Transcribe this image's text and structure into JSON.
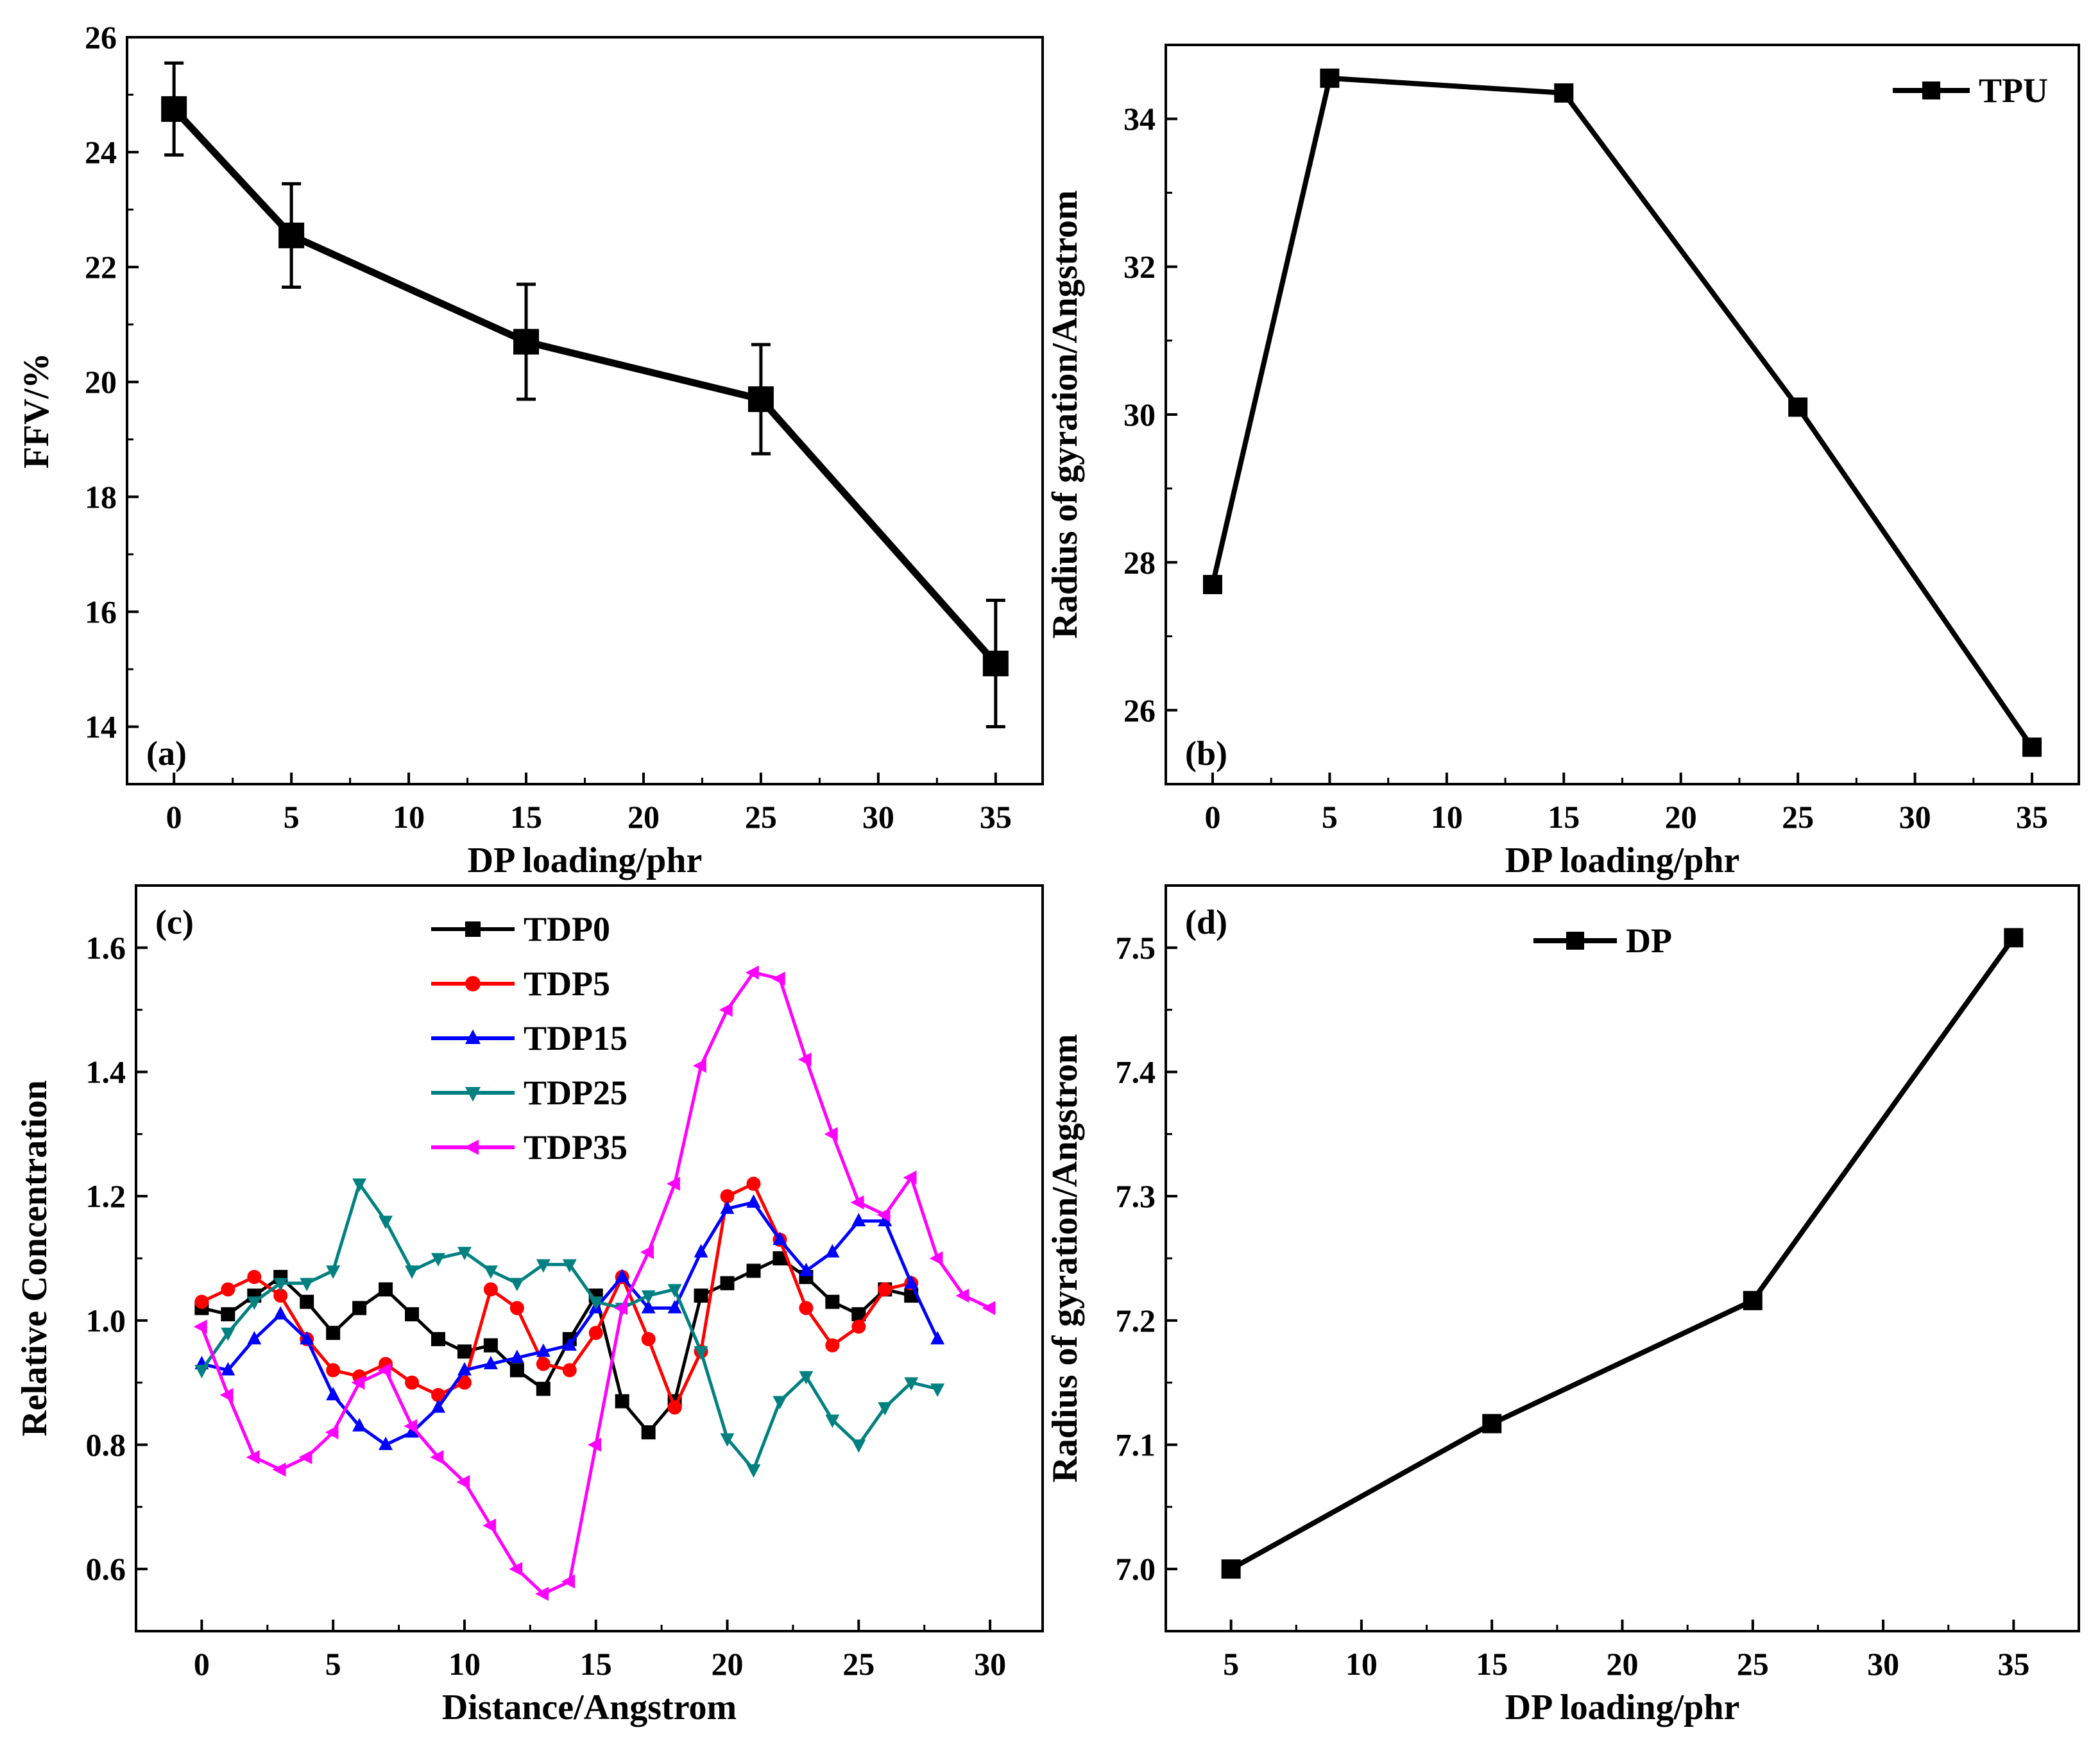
{
  "chart_data": [
    {
      "panel": "(a)",
      "type": "line",
      "xlabel": "DP loading/phr",
      "ylabel": "FFV/%",
      "xlim": [
        -2,
        37
      ],
      "ylim": [
        13,
        26
      ],
      "xticks": [
        0,
        5,
        10,
        15,
        20,
        25,
        30,
        35
      ],
      "yticks": [
        14,
        16,
        18,
        20,
        22,
        24,
        26
      ],
      "series": [
        {
          "marker": "square",
          "color": "#000000",
          "x": [
            0,
            5,
            15,
            25,
            35
          ],
          "y": [
            24.75,
            22.55,
            20.7,
            19.7,
            15.1
          ],
          "error": [
            0.8,
            0.9,
            1.0,
            0.95,
            1.1
          ]
        }
      ]
    },
    {
      "panel": "(b)",
      "type": "line",
      "xlabel": "DP loading/phr",
      "ylabel": "Radius of gyration/Angstrom",
      "xlim": [
        -2,
        37
      ],
      "ylim": [
        25,
        35
      ],
      "xticks": [
        0,
        5,
        10,
        15,
        20,
        25,
        30,
        35
      ],
      "yticks": [
        26,
        28,
        30,
        32,
        34
      ],
      "legend": "top-right",
      "series": [
        {
          "name": "TPU",
          "marker": "square",
          "color": "#000000",
          "x": [
            0,
            5,
            15,
            25,
            35
          ],
          "y": [
            27.7,
            34.55,
            34.35,
            30.1,
            25.5
          ]
        }
      ]
    },
    {
      "panel": "(c)",
      "type": "line",
      "xlabel": "Distance/Angstrom",
      "ylabel": "Relative Concentration",
      "xlim": [
        -2.5,
        32
      ],
      "ylim": [
        0.5,
        1.7
      ],
      "xticks": [
        0,
        5,
        10,
        15,
        20,
        25,
        30
      ],
      "yticks": [
        0.6,
        0.8,
        1.0,
        1.2,
        1.4,
        1.6
      ],
      "legend": "top-left",
      "series": [
        {
          "name": "TDP0",
          "marker": "square",
          "color": "#000000",
          "x": [
            0,
            1,
            2,
            3,
            4,
            5,
            6,
            7,
            8,
            9,
            10,
            11,
            12,
            13,
            14,
            15,
            16,
            17,
            18,
            19,
            20,
            21,
            22,
            23,
            24,
            25,
            26,
            27
          ],
          "y": [
            1.02,
            1.01,
            1.04,
            1.07,
            1.03,
            0.98,
            1.02,
            1.05,
            1.01,
            0.97,
            0.95,
            0.96,
            0.92,
            0.89,
            0.97,
            1.04,
            0.87,
            0.82,
            0.87,
            1.04,
            1.06,
            1.08,
            1.1,
            1.07,
            1.03,
            1.01,
            1.05,
            1.04
          ]
        },
        {
          "name": "TDP5",
          "marker": "circle",
          "color": "#ff0000",
          "x": [
            0,
            1,
            2,
            3,
            4,
            5,
            6,
            7,
            8,
            9,
            10,
            11,
            12,
            13,
            14,
            15,
            16,
            17,
            18,
            19,
            20,
            21,
            22,
            23,
            24,
            25,
            26,
            27
          ],
          "y": [
            1.03,
            1.05,
            1.07,
            1.04,
            0.97,
            0.92,
            0.91,
            0.93,
            0.9,
            0.88,
            0.9,
            1.05,
            1.02,
            0.93,
            0.92,
            0.98,
            1.07,
            0.97,
            0.86,
            0.95,
            1.2,
            1.22,
            1.13,
            1.02,
            0.96,
            0.99,
            1.05,
            1.06
          ]
        },
        {
          "name": "TDP15",
          "marker": "triangle-up",
          "color": "#0000ff",
          "x": [
            0,
            1,
            2,
            3,
            4,
            5,
            6,
            7,
            8,
            9,
            10,
            11,
            12,
            13,
            14,
            15,
            16,
            17,
            18,
            19,
            20,
            21,
            22,
            23,
            24,
            25,
            26,
            27,
            28
          ],
          "y": [
            0.93,
            0.92,
            0.97,
            1.01,
            0.97,
            0.88,
            0.83,
            0.8,
            0.82,
            0.86,
            0.92,
            0.93,
            0.94,
            0.95,
            0.96,
            1.02,
            1.07,
            1.02,
            1.02,
            1.11,
            1.18,
            1.19,
            1.13,
            1.08,
            1.11,
            1.16,
            1.16,
            1.06,
            0.97
          ]
        },
        {
          "name": "TDP25",
          "marker": "triangle-down",
          "color": "#008080",
          "x": [
            0,
            1,
            2,
            3,
            4,
            5,
            6,
            7,
            8,
            9,
            10,
            11,
            12,
            13,
            14,
            15,
            16,
            17,
            18,
            19,
            20,
            21,
            22,
            23,
            24,
            25,
            26,
            27,
            28
          ],
          "y": [
            0.92,
            0.98,
            1.03,
            1.06,
            1.06,
            1.08,
            1.22,
            1.16,
            1.08,
            1.1,
            1.11,
            1.08,
            1.06,
            1.09,
            1.09,
            1.03,
            1.02,
            1.04,
            1.05,
            0.95,
            0.81,
            0.76,
            0.87,
            0.91,
            0.84,
            0.8,
            0.86,
            0.9,
            0.89
          ]
        },
        {
          "name": "TDP35",
          "marker": "triangle-left",
          "color": "#ff00ff",
          "x": [
            0,
            1,
            2,
            3,
            4,
            5,
            6,
            7,
            8,
            9,
            10,
            11,
            12,
            13,
            14,
            15,
            16,
            17,
            18,
            19,
            20,
            21,
            22,
            23,
            24,
            25,
            26,
            27,
            28,
            29,
            30
          ],
          "y": [
            0.99,
            0.88,
            0.78,
            0.76,
            0.78,
            0.82,
            0.9,
            0.92,
            0.83,
            0.78,
            0.74,
            0.67,
            0.6,
            0.56,
            0.58,
            0.8,
            1.02,
            1.11,
            1.22,
            1.41,
            1.5,
            1.56,
            1.55,
            1.42,
            1.3,
            1.19,
            1.17,
            1.23,
            1.1,
            1.04,
            1.02
          ]
        }
      ]
    },
    {
      "panel": "(d)",
      "type": "line",
      "xlabel": "DP loading/phr",
      "ylabel": "Radius of gyration/Angstrom",
      "xlim": [
        2.5,
        37.5
      ],
      "ylim": [
        6.95,
        7.55
      ],
      "xticks": [
        5,
        10,
        15,
        20,
        25,
        30,
        35
      ],
      "yticks": [
        7.0,
        7.1,
        7.2,
        7.3,
        7.4,
        7.5
      ],
      "legend": "top-center",
      "series": [
        {
          "name": "DP",
          "marker": "square",
          "color": "#000000",
          "x": [
            5,
            15,
            25,
            35
          ],
          "y": [
            7.0,
            7.117,
            7.216,
            7.508
          ]
        }
      ]
    }
  ]
}
